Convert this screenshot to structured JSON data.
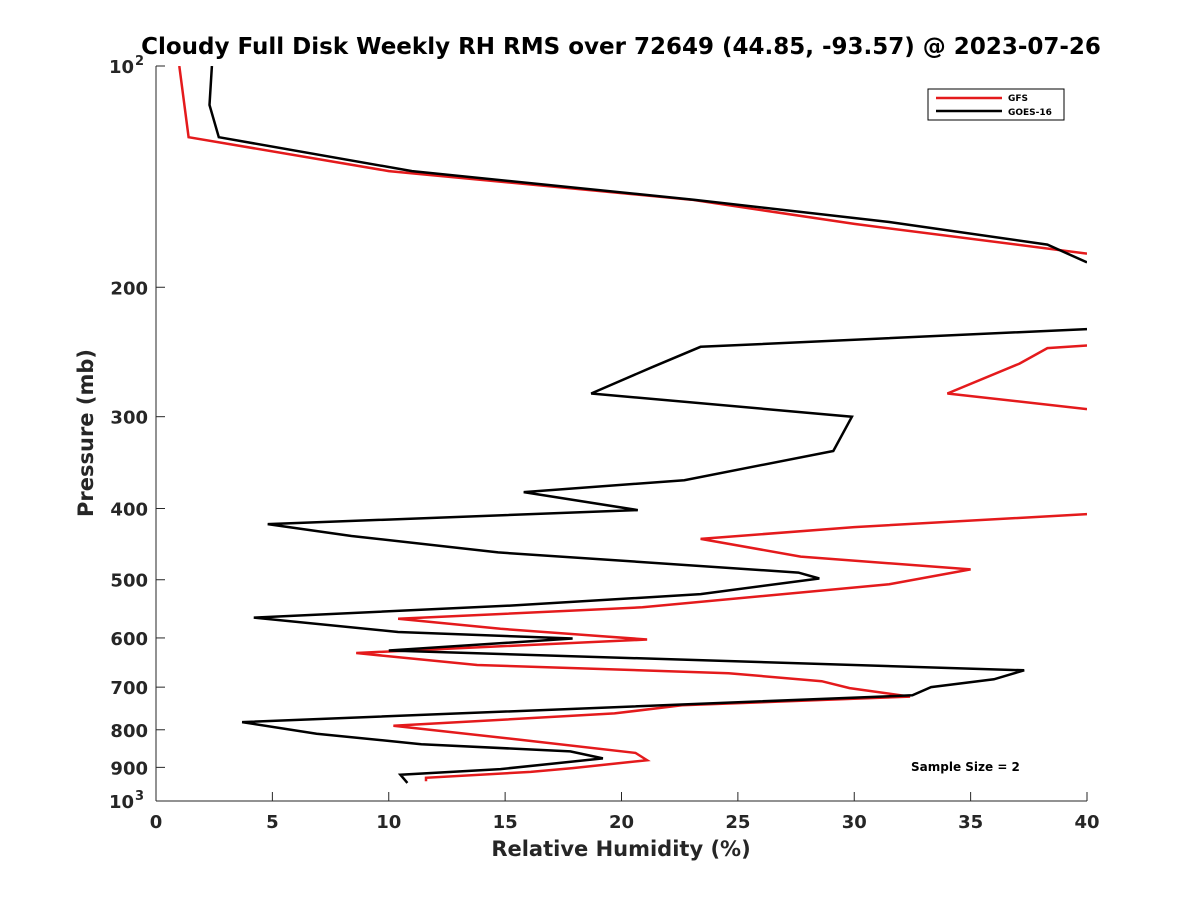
{
  "chart_data": {
    "type": "line",
    "title": "Cloudy Full Disk Weekly RH RMS over 72649 (44.85, -93.57) @ 2023-07-26",
    "xlabel": "Relative Humidity (%)",
    "ylabel": "Pressure (mb)",
    "xlim": [
      0,
      40
    ],
    "ylim": [
      100,
      1000
    ],
    "yscale": "log",
    "y_reversed": true,
    "grid": false,
    "legend_position": "top-right",
    "x_ticks": [
      "0",
      "5",
      "10",
      "15",
      "20",
      "25",
      "30",
      "35",
      "40"
    ],
    "y_ticks": [
      {
        "value": 100,
        "base": "10",
        "exp": "2"
      },
      {
        "value": 200,
        "label": "200"
      },
      {
        "value": 300,
        "label": "300"
      },
      {
        "value": 400,
        "label": "400"
      },
      {
        "value": 500,
        "label": "500"
      },
      {
        "value": 600,
        "label": "600"
      },
      {
        "value": 700,
        "label": "700"
      },
      {
        "value": 800,
        "label": "800"
      },
      {
        "value": 900,
        "label": "900"
      },
      {
        "value": 1000,
        "base": "10",
        "exp": "3"
      }
    ],
    "annotation": "Sample Size = 2",
    "series": [
      {
        "name": "GFS",
        "color": "#e41a1c",
        "points": [
          [
            1.0,
            100
          ],
          [
            1.4,
            125
          ],
          [
            10,
            139
          ],
          [
            23,
            152
          ],
          [
            30,
            164
          ],
          [
            40,
            180
          ],
          [
            null,
            null
          ],
          [
            40,
            240
          ],
          [
            38.3,
            242
          ],
          [
            37.1,
            254
          ],
          [
            34,
            279
          ],
          [
            40,
            293
          ],
          [
            null,
            null
          ],
          [
            40,
            407
          ],
          [
            30,
            424
          ],
          [
            23.4,
            440
          ],
          [
            27.7,
            465
          ],
          [
            35,
            484
          ],
          [
            31.5,
            507
          ],
          [
            20.9,
            545
          ],
          [
            10.4,
            565
          ],
          [
            14.8,
            583
          ],
          [
            21.1,
            603
          ],
          [
            8.6,
            629
          ],
          [
            13.8,
            653
          ],
          [
            24.6,
            670
          ],
          [
            28.6,
            687
          ],
          [
            29.8,
            702
          ],
          [
            32.4,
            721
          ],
          [
            22.6,
            741
          ],
          [
            19.7,
            760
          ],
          [
            10.2,
            790
          ],
          [
            15.6,
            825
          ],
          [
            20.6,
            860
          ],
          [
            21.1,
            880
          ],
          [
            17.9,
            902
          ],
          [
            16.1,
            913
          ],
          [
            11.6,
            930
          ],
          [
            11.6,
            940
          ]
        ]
      },
      {
        "name": "GOES-16",
        "color": "#000000",
        "points": [
          [
            2.4,
            100
          ],
          [
            2.3,
            113
          ],
          [
            2.7,
            125
          ],
          [
            11,
            139
          ],
          [
            23.1,
            152
          ],
          [
            31.5,
            163
          ],
          [
            38.3,
            175
          ],
          [
            40,
            185
          ],
          [
            null,
            null
          ],
          [
            40,
            228
          ],
          [
            23.4,
            241
          ],
          [
            21.3,
            257
          ],
          [
            18.7,
            279
          ],
          [
            29.9,
            300
          ],
          [
            29.1,
            334
          ],
          [
            22.7,
            366
          ],
          [
            15.8,
            380
          ],
          [
            20.7,
            402
          ],
          [
            4.8,
            420
          ],
          [
            8.4,
            436
          ],
          [
            14.7,
            459
          ],
          [
            27.6,
            489
          ],
          [
            28.5,
            498
          ],
          [
            23.4,
            523
          ],
          [
            15.3,
            542
          ],
          [
            4.2,
            563
          ],
          [
            10.4,
            589
          ],
          [
            17.9,
            601
          ],
          [
            10,
            624
          ],
          [
            37.3,
            664
          ],
          [
            36,
            683
          ],
          [
            33.3,
            700
          ],
          [
            32.5,
            718
          ],
          [
            3.7,
            781
          ],
          [
            6.9,
            810
          ],
          [
            11.4,
            837
          ],
          [
            17.8,
            856
          ],
          [
            19.2,
            875
          ],
          [
            14.8,
            905
          ],
          [
            10.5,
            921
          ],
          [
            10.8,
            945
          ]
        ]
      }
    ]
  }
}
